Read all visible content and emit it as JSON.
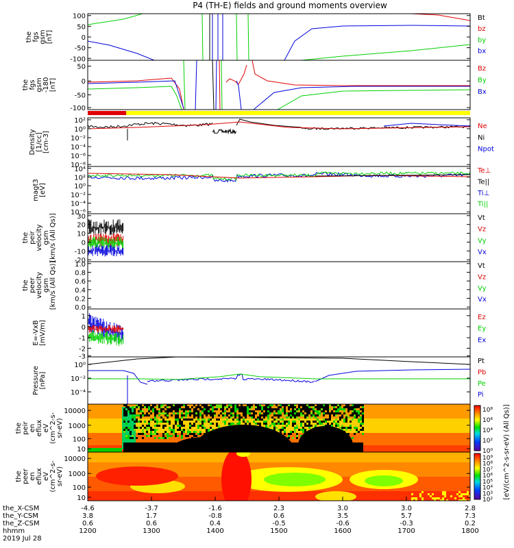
{
  "title": "P4 (TH-E) fields and ground moments overview",
  "colors": {
    "black": "#000000",
    "red": "#e00000",
    "green": "#00d000",
    "blue": "#0000dd",
    "yellow": "#ffff00"
  },
  "chart_data": [
    {
      "type": "line",
      "id": "fgs",
      "ylabel": [
        "the",
        "fgs",
        "gsm",
        "[nT]"
      ],
      "ylim": [
        -100,
        100
      ],
      "yticks": [
        "100",
        "50",
        "0",
        "-50",
        "-100"
      ],
      "legend": [
        {
          "label": "Bt",
          "color": "black"
        },
        {
          "label": "bz",
          "color": "red"
        },
        {
          "label": "by",
          "color": "green"
        },
        {
          "label": "bx",
          "color": "blue"
        }
      ]
    },
    {
      "type": "line",
      "id": "fgs2",
      "ylabel": [
        "the",
        "fgs",
        "gsm",
        "-180",
        "[nT]"
      ],
      "ylim": [
        -120,
        60
      ],
      "yticks": [
        "50",
        "0",
        "-50",
        "-100"
      ],
      "legend": [
        {
          "label": "Bz",
          "color": "red"
        },
        {
          "label": "By",
          "color": "green"
        },
        {
          "label": "Bx",
          "color": "blue"
        }
      ]
    },
    {
      "type": "line",
      "id": "density",
      "scale": "log",
      "ylabel": [
        "Density",
        "[1/cc]",
        "[cm-3]"
      ],
      "ylim": [
        1e-09,
        1000.0
      ],
      "yticks": [
        "10²",
        "10⁰",
        "10⁻²",
        "10⁻⁴",
        "10⁻⁶",
        "10⁻⁸"
      ],
      "legend": [
        {
          "label": "Ne",
          "color": "red"
        },
        {
          "label": "Ni",
          "color": "black"
        },
        {
          "label": "Npot",
          "color": "blue"
        }
      ]
    },
    {
      "type": "line",
      "id": "temp",
      "scale": "log",
      "ylabel": [
        "magt3",
        "[eV]"
      ],
      "ylim": [
        1e-07,
        100000.0
      ],
      "yticks": [
        "10⁴",
        "10²",
        "10⁰",
        "10⁻²",
        "10⁻⁴",
        "10⁻⁶"
      ],
      "legend": [
        {
          "label": "Te⊥",
          "color": "red"
        },
        {
          "label": "Te||",
          "color": "black"
        },
        {
          "label": "Ti⊥",
          "color": "blue"
        },
        {
          "label": "Ti||",
          "color": "green"
        }
      ]
    },
    {
      "type": "line",
      "id": "peir_vel",
      "ylabel": [
        "the",
        "peir",
        "velocity",
        "gsm",
        "[km/s (All Qs)]"
      ],
      "ylim": [
        -20,
        30
      ],
      "yticks": [
        "30",
        "20",
        "10",
        "0",
        "-10",
        "-20"
      ],
      "legend": [
        {
          "label": "Vt",
          "color": "black"
        },
        {
          "label": "Vz",
          "color": "red"
        },
        {
          "label": "Vy",
          "color": "green"
        },
        {
          "label": "Vx",
          "color": "blue"
        }
      ]
    },
    {
      "type": "line",
      "id": "peer_vel",
      "ylabel": [
        "the",
        "peer",
        "velocity",
        "gsm",
        "[km/s (All Qs)]"
      ],
      "ylim": [
        0,
        1
      ],
      "yticks": [
        "1.0",
        "0.8",
        "0.6",
        "0.4",
        "0.2",
        "0.0"
      ],
      "legend": [
        {
          "label": "Vt",
          "color": "black"
        },
        {
          "label": "Vz",
          "color": "red"
        },
        {
          "label": "Vy",
          "color": "green"
        },
        {
          "label": "Vx",
          "color": "blue"
        }
      ]
    },
    {
      "type": "line",
      "id": "efield",
      "ylabel": [
        "E=-VxB",
        "[mV/m]"
      ],
      "ylim": [
        -3,
        2
      ],
      "yticks": [
        "1",
        "0",
        "-1",
        "-2",
        "-3"
      ],
      "legend": [
        {
          "label": "Ez",
          "color": "red"
        },
        {
          "label": "Ey",
          "color": "green"
        },
        {
          "label": "Ex",
          "color": "blue"
        }
      ]
    },
    {
      "type": "line",
      "id": "pressure",
      "scale": "log",
      "ylabel": [
        "Pressure",
        "[nPa]"
      ],
      "ylim": [
        1e-06,
        10.0
      ],
      "yticks": [
        "10⁰",
        "10⁻²",
        "10⁻⁴"
      ],
      "legend": [
        {
          "label": "Pt",
          "color": "black"
        },
        {
          "label": "Pb",
          "color": "red"
        },
        {
          "label": "Pe",
          "color": "green"
        },
        {
          "label": "Pi",
          "color": "blue"
        }
      ]
    },
    {
      "type": "heatmap",
      "id": "peir_en",
      "ylabel": [
        "the",
        "peir",
        "en",
        "eflux",
        "eV",
        "(cm^2-s-",
        "sr-eV)"
      ],
      "ylim": [
        5,
        20000
      ],
      "scale": "log",
      "yticks": [
        "10000",
        "1000",
        "100",
        "10"
      ],
      "colorbar": {
        "label": "[eV/(cm^2-s-sr-eV) (All Qs)]",
        "ticks": [
          "10⁸",
          "10⁶",
          "10⁴",
          "10²",
          "10⁰"
        ]
      }
    },
    {
      "type": "heatmap",
      "id": "peer_en",
      "ylabel": [
        "the",
        "peer",
        "en",
        "eflux",
        "eV",
        "(cm^2-s-",
        "sr-eV)"
      ],
      "ylim": [
        5,
        20000
      ],
      "scale": "log",
      "yticks": [
        "10000",
        "1000",
        "100",
        "10"
      ],
      "colorbar": {
        "label": "[eV/(cm^2-s-sr-eV) (All Qs)]",
        "ticks": [
          "10⁹",
          "10⁸",
          "10⁷",
          "10⁶",
          "10⁵",
          "10⁴",
          "10³",
          "10²"
        ]
      }
    }
  ],
  "xaxis": {
    "rows": [
      {
        "label": "the_X-CSM",
        "values": [
          "-4.6",
          "-3.7",
          "-1.6",
          "2.3",
          "3.0",
          "3.0",
          "2.8"
        ]
      },
      {
        "label": "the_Y-CSM",
        "values": [
          "3.8",
          "1.7",
          "-0.8",
          "0.6",
          "3.5",
          "5.7",
          "7.3"
        ]
      },
      {
        "label": "the_Z-CSM",
        "values": [
          "0.6",
          "0.6",
          "0.4",
          "-0.5",
          "-0.6",
          "-0.3",
          "0.2"
        ]
      },
      {
        "label": "hhmm",
        "values": [
          "1200",
          "1300",
          "1400",
          "1500",
          "1600",
          "1700",
          "1800"
        ]
      }
    ],
    "date": "2019 Jul 28"
  }
}
